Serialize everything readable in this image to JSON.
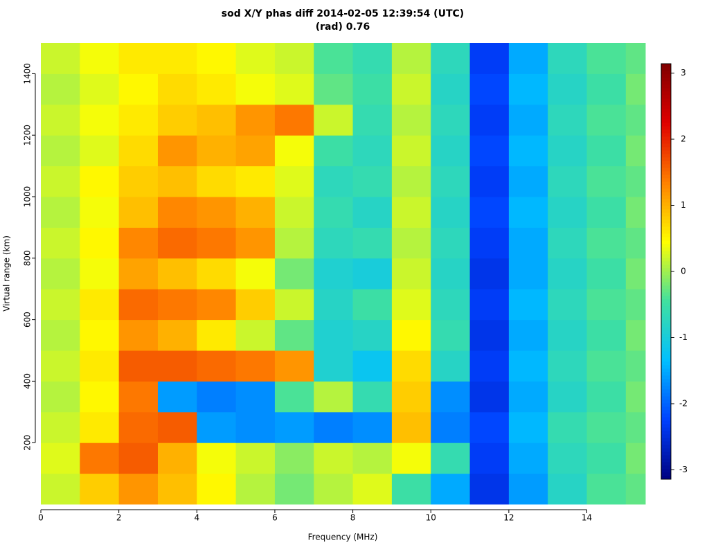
{
  "chart_data": {
    "type": "heatmap",
    "title": "sod X/Y phas diff 2014-02-05 12:39:54 (UTC)",
    "subtitle": "(rad) 0.76",
    "x_label": "Frequency (MHz)",
    "y_label": "Virtual range (km)",
    "x_bins": [
      0,
      1,
      2,
      3,
      4,
      5,
      6,
      7,
      8,
      9,
      10,
      11,
      12,
      13,
      14,
      15,
      15.5
    ],
    "y_bins": [
      0,
      100,
      200,
      300,
      400,
      500,
      600,
      700,
      800,
      900,
      1000,
      1100,
      1200,
      1300,
      1400,
      1500
    ],
    "z": [
      [
        0.2,
        0.8,
        1.2,
        0.9,
        0.5,
        0.1,
        -0.2,
        0.1,
        0.3,
        -0.5,
        -1.5,
        -2.4,
        -1.6,
        -0.8,
        -0.4,
        -0.3
      ],
      [
        0.3,
        1.4,
        1.6,
        1.0,
        0.4,
        0.2,
        -0.1,
        0.2,
        0.1,
        0.4,
        -0.6,
        -2.3,
        -1.5,
        -0.7,
        -0.5,
        -0.2
      ],
      [
        0.2,
        0.6,
        1.5,
        1.6,
        -1.6,
        -1.7,
        -1.6,
        -1.8,
        -1.7,
        0.9,
        -1.8,
        -2.2,
        -1.4,
        -0.6,
        -0.4,
        -0.3
      ],
      [
        0.1,
        0.5,
        1.4,
        -1.6,
        -1.8,
        -1.7,
        -0.4,
        0.1,
        -0.6,
        0.8,
        -1.7,
        -2.4,
        -1.5,
        -0.8,
        -0.5,
        -0.2
      ],
      [
        0.2,
        0.6,
        1.6,
        1.6,
        1.5,
        1.4,
        1.2,
        -0.9,
        -1.2,
        0.7,
        -0.8,
        -2.3,
        -1.4,
        -0.7,
        -0.4,
        -0.3
      ],
      [
        0.1,
        0.5,
        1.2,
        1.0,
        0.6,
        0.2,
        -0.3,
        -0.9,
        -0.8,
        0.5,
        -0.6,
        -2.4,
        -1.5,
        -0.8,
        -0.5,
        -0.2
      ],
      [
        0.2,
        0.6,
        1.5,
        1.4,
        1.3,
        0.8,
        0.2,
        -0.8,
        -0.5,
        0.3,
        -0.7,
        -2.3,
        -1.4,
        -0.7,
        -0.4,
        -0.3
      ],
      [
        0.1,
        0.4,
        1.1,
        0.9,
        0.7,
        0.4,
        -0.2,
        -0.9,
        -1.0,
        0.2,
        -0.8,
        -2.4,
        -1.5,
        -0.8,
        -0.5,
        -0.2
      ],
      [
        0.2,
        0.5,
        1.3,
        1.5,
        1.4,
        1.2,
        0.1,
        -0.7,
        -0.6,
        0.1,
        -0.7,
        -2.3,
        -1.5,
        -0.7,
        -0.4,
        -0.3
      ],
      [
        0.1,
        0.4,
        0.9,
        1.3,
        1.2,
        1.0,
        0.2,
        -0.6,
        -0.8,
        0.2,
        -0.8,
        -2.2,
        -1.4,
        -0.8,
        -0.5,
        -0.2
      ],
      [
        0.2,
        0.5,
        0.8,
        0.9,
        0.7,
        0.6,
        0.3,
        -0.7,
        -0.6,
        0.1,
        -0.7,
        -2.3,
        -1.5,
        -0.7,
        -0.4,
        -0.3
      ],
      [
        0.1,
        0.3,
        0.7,
        1.2,
        1.0,
        1.1,
        0.4,
        -0.5,
        -0.7,
        0.2,
        -0.8,
        -2.2,
        -1.4,
        -0.8,
        -0.5,
        -0.2
      ],
      [
        0.2,
        0.4,
        0.6,
        0.8,
        0.9,
        1.2,
        1.4,
        0.2,
        -0.6,
        0.1,
        -0.7,
        -2.3,
        -1.5,
        -0.7,
        -0.4,
        -0.3
      ],
      [
        0.1,
        0.3,
        0.5,
        0.7,
        0.6,
        0.4,
        0.3,
        -0.3,
        -0.5,
        0.2,
        -0.8,
        -2.2,
        -1.4,
        -0.8,
        -0.5,
        -0.2
      ],
      [
        0.2,
        0.4,
        0.6,
        0.6,
        0.5,
        0.3,
        0.2,
        -0.4,
        -0.6,
        0.1,
        -0.7,
        -2.3,
        -1.5,
        -0.7,
        -0.4,
        -0.3
      ]
    ],
    "xlim": [
      0,
      15.5
    ],
    "xticks": [
      0,
      2,
      4,
      6,
      8,
      10,
      12,
      14
    ],
    "ylim": [
      0,
      1500
    ],
    "yticks": [
      200,
      400,
      600,
      800,
      1000,
      1200,
      1400
    ],
    "zlim": [
      -3.14159,
      3.14159
    ],
    "zticks": [
      -3,
      -2,
      -1,
      0,
      1,
      2,
      3
    ],
    "colorscale": [
      "#000080",
      "#0040ff",
      "#00c0ff",
      "#40e0a0",
      "#ffff00",
      "#ff8000",
      "#e00000",
      "#800000"
    ]
  }
}
